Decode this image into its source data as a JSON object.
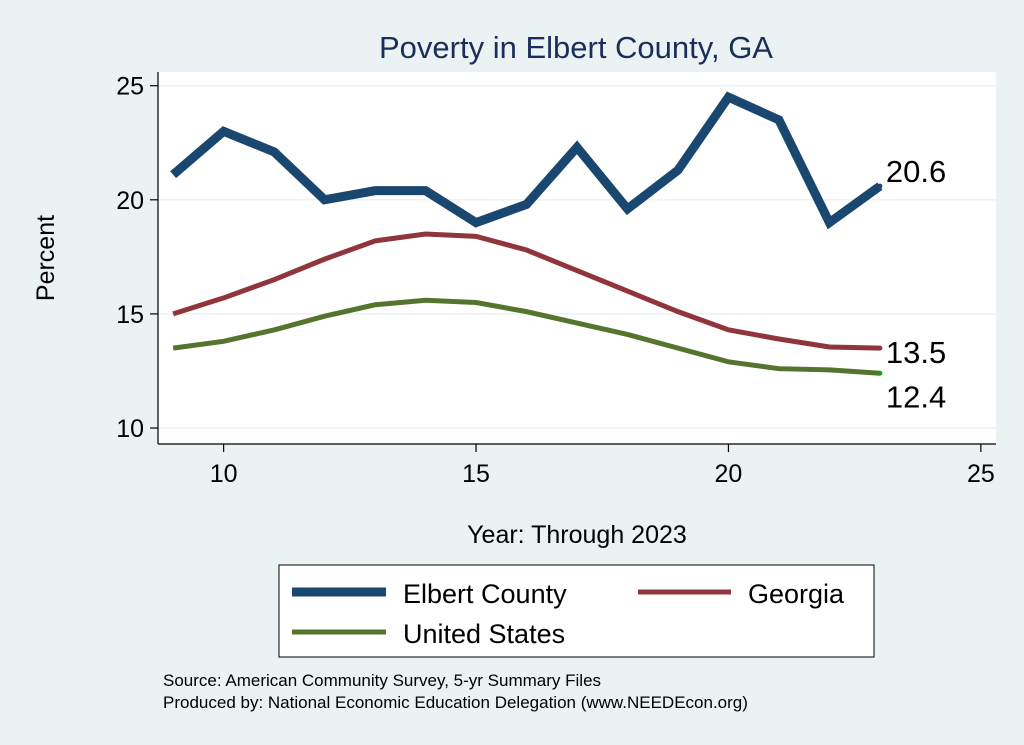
{
  "chart_data": {
    "type": "line",
    "title": "Poverty in Elbert County, GA",
    "xlabel": "Year: Through 2023",
    "ylabel": "Percent",
    "xlim": [
      8.7,
      25.3
    ],
    "ylim": [
      9.3,
      25.6
    ],
    "xticks": [
      "10",
      "15",
      "20",
      "25"
    ],
    "yticks": [
      "10",
      "15",
      "20",
      "25"
    ],
    "grid": true,
    "x": [
      9,
      10,
      11,
      12,
      13,
      14,
      15,
      16,
      17,
      18,
      19,
      20,
      21,
      22,
      23
    ],
    "series": [
      {
        "name": "Elbert County",
        "color": "#1a476f",
        "width": 9,
        "values": [
          21.1,
          23.0,
          22.1,
          20.0,
          20.4,
          20.4,
          19.0,
          19.8,
          22.3,
          19.6,
          21.3,
          24.5,
          23.5,
          19.0,
          20.6
        ],
        "end_label": "20.6"
      },
      {
        "name": "Georgia",
        "color": "#90353b",
        "width": 5,
        "values": [
          15.0,
          15.7,
          16.5,
          17.4,
          18.2,
          18.5,
          18.4,
          17.8,
          16.9,
          16.0,
          15.1,
          14.3,
          13.9,
          13.55,
          13.5
        ],
        "end_label": "13.5"
      },
      {
        "name": "United States",
        "color": "#55752f",
        "width": 5,
        "values": [
          13.5,
          13.8,
          14.3,
          14.9,
          15.4,
          15.6,
          15.5,
          15.1,
          14.6,
          14.1,
          13.5,
          12.9,
          12.6,
          12.55,
          12.4
        ],
        "end_label": "12.4"
      }
    ],
    "legend": {
      "position": "bottom",
      "items": [
        "Elbert County",
        "Georgia",
        "United States"
      ]
    }
  },
  "source_lines": [
    "Source: American Community Survey, 5-yr Summary Files",
    "Produced by: National Economic Education Delegation (www.NEEDEcon.org)"
  ]
}
